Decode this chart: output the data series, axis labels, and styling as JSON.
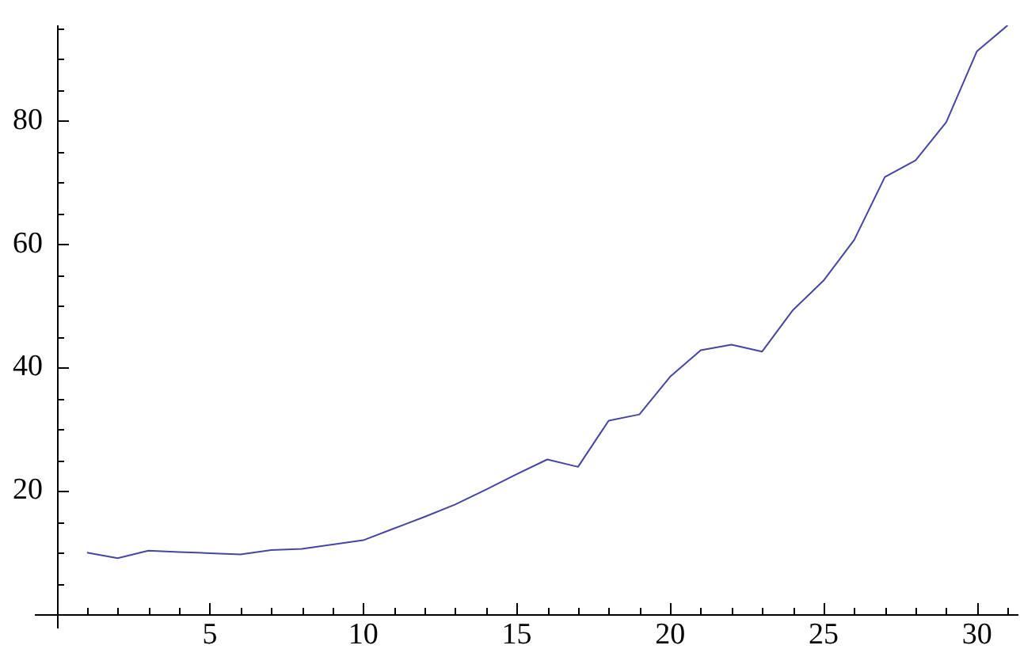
{
  "chart_data": {
    "type": "line",
    "color": "#4646a0",
    "marker": "none",
    "legend": false,
    "x": [
      1,
      2,
      3,
      4,
      5,
      6,
      7,
      8,
      9,
      10,
      11,
      12,
      13,
      14,
      15,
      16,
      17,
      18,
      19,
      20,
      21,
      22,
      23,
      24,
      25,
      26,
      27,
      28,
      29,
      30,
      31
    ],
    "values": [
      10.0,
      9.1,
      10.3,
      10.1,
      9.9,
      9.7,
      10.4,
      10.6,
      11.3,
      12.0,
      13.9,
      15.8,
      17.8,
      20.2,
      22.7,
      25.1,
      23.9,
      31.4,
      32.4,
      38.5,
      42.8,
      43.7,
      42.6,
      49.3,
      54.1,
      60.7,
      70.9,
      73.6,
      79.8,
      91.3,
      95.5
    ],
    "xlim": [
      -0.7,
      31.3
    ],
    "ylim": [
      -2.3,
      95.5
    ],
    "xticks": [
      {
        "value": 1,
        "label": null
      },
      {
        "value": 2,
        "label": null
      },
      {
        "value": 3,
        "label": null
      },
      {
        "value": 4,
        "label": null
      },
      5,
      {
        "value": 6,
        "label": null
      },
      {
        "value": 7,
        "label": null
      },
      {
        "value": 8,
        "label": null
      },
      {
        "value": 9,
        "label": null
      },
      10,
      {
        "value": 11,
        "label": null
      },
      {
        "value": 12,
        "label": null
      },
      {
        "value": 13,
        "label": null
      },
      {
        "value": 14,
        "label": null
      },
      15,
      {
        "value": 16,
        "label": null
      },
      {
        "value": 17,
        "label": null
      },
      {
        "value": 18,
        "label": null
      },
      {
        "value": 19,
        "label": null
      },
      20,
      {
        "value": 21,
        "label": null
      },
      {
        "value": 22,
        "label": null
      },
      {
        "value": 23,
        "label": null
      },
      {
        "value": 24,
        "label": null
      },
      25,
      {
        "value": 26,
        "label": null
      },
      {
        "value": 27,
        "label": null
      },
      {
        "value": 28,
        "label": null
      },
      {
        "value": 29,
        "label": null
      },
      30,
      {
        "value": 31,
        "label": null
      }
    ],
    "yticks": [
      {
        "value": 5,
        "label": null
      },
      {
        "value": 10,
        "label": null
      },
      {
        "value": 15,
        "label": null
      },
      20,
      {
        "value": 25,
        "label": null
      },
      {
        "value": 30,
        "label": null
      },
      {
        "value": 35,
        "label": null
      },
      40,
      {
        "value": 45,
        "label": null
      },
      {
        "value": 50,
        "label": null
      },
      {
        "value": 55,
        "label": null
      },
      60,
      {
        "value": 65,
        "label": null
      },
      {
        "value": 70,
        "label": null
      },
      {
        "value": 75,
        "label": null
      },
      80,
      {
        "value": 85,
        "label": null
      },
      {
        "value": 90,
        "label": null
      },
      {
        "value": 95,
        "label": null
      }
    ],
    "grid": false
  }
}
